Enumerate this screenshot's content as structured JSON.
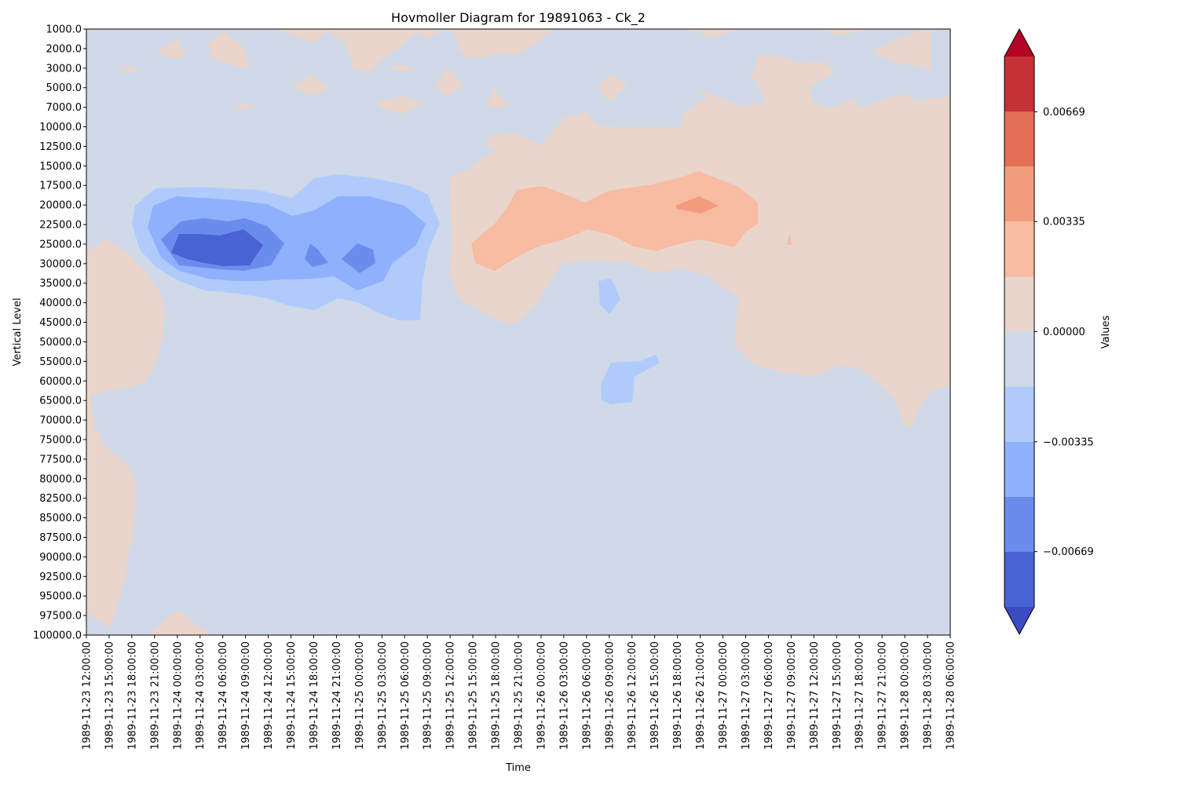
{
  "chart_data": {
    "type": "heatmap",
    "title": "Hovmoller Diagram for 19891063 - Ck_2",
    "xlabel": "Time",
    "ylabel": "Vertical Level",
    "colorbar_label": "Values",
    "colormap": "coolwarm",
    "grid": false,
    "y_inverted": true,
    "x_ticks": [
      "1989-11-23 12:00:00",
      "1989-11-23 15:00:00",
      "1989-11-23 18:00:00",
      "1989-11-23 21:00:00",
      "1989-11-24 00:00:00",
      "1989-11-24 03:00:00",
      "1989-11-24 06:00:00",
      "1989-11-24 09:00:00",
      "1989-11-24 12:00:00",
      "1989-11-24 15:00:00",
      "1989-11-24 18:00:00",
      "1989-11-24 21:00:00",
      "1989-11-25 00:00:00",
      "1989-11-25 03:00:00",
      "1989-11-25 06:00:00",
      "1989-11-25 09:00:00",
      "1989-11-25 12:00:00",
      "1989-11-25 15:00:00",
      "1989-11-25 18:00:00",
      "1989-11-25 21:00:00",
      "1989-11-26 00:00:00",
      "1989-11-26 03:00:00",
      "1989-11-26 06:00:00",
      "1989-11-26 09:00:00",
      "1989-11-26 12:00:00",
      "1989-11-26 15:00:00",
      "1989-11-26 18:00:00",
      "1989-11-26 21:00:00",
      "1989-11-27 00:00:00",
      "1989-11-27 03:00:00",
      "1989-11-27 06:00:00",
      "1989-11-27 09:00:00",
      "1989-11-27 12:00:00",
      "1989-11-27 15:00:00",
      "1989-11-27 18:00:00",
      "1989-11-27 21:00:00",
      "1989-11-28 00:00:00",
      "1989-11-28 03:00:00",
      "1989-11-28 06:00:00"
    ],
    "y_ticks": [
      "1000.0",
      "2000.0",
      "3000.0",
      "5000.0",
      "7000.0",
      "10000.0",
      "12500.0",
      "15000.0",
      "17500.0",
      "20000.0",
      "22500.0",
      "25000.0",
      "30000.0",
      "35000.0",
      "40000.0",
      "45000.0",
      "50000.0",
      "55000.0",
      "60000.0",
      "65000.0",
      "70000.0",
      "75000.0",
      "77500.0",
      "80000.0",
      "82500.0",
      "85000.0",
      "87500.0",
      "90000.0",
      "92500.0",
      "95000.0",
      "97500.0",
      "100000.0"
    ],
    "colorbar": {
      "ticks": [
        "0.00669",
        "0.00335",
        "0.00000",
        "−0.00335",
        "−0.00669"
      ],
      "tick_values": [
        0.00669,
        0.00335,
        0.0,
        -0.00335,
        -0.00669
      ],
      "range": [
        -0.00837,
        0.00837
      ],
      "extend": "both",
      "levels_top_to_bottom": [
        {
          "color": "#c43136",
          "range": [
            0.00669,
            0.00837
          ]
        },
        {
          "color": "#e26e56",
          "range": [
            0.00502,
            0.00669
          ]
        },
        {
          "color": "#f39c7d",
          "range": [
            0.00335,
            0.00502
          ]
        },
        {
          "color": "#f7bca1",
          "range": [
            0.00167,
            0.00335
          ]
        },
        {
          "color": "#e9d5cb",
          "range": [
            0.0,
            0.00167
          ]
        },
        {
          "color": "#cfd9e8",
          "range": [
            -0.00167,
            0.0
          ]
        },
        {
          "color": "#b0cbfb",
          "range": [
            -0.00335,
            -0.00167
          ]
        },
        {
          "color": "#8fb0fc",
          "range": [
            -0.00502,
            -0.00335
          ]
        },
        {
          "color": "#6a8ded",
          "range": [
            -0.00669,
            -0.00502
          ]
        },
        {
          "color": "#4a63d3",
          "range": [
            -0.00837,
            -0.00669
          ]
        }
      ],
      "over_color": "#b40426",
      "under_color": "#3b4cc0"
    },
    "features": [
      {
        "level": "negative",
        "value_range": [
          -0.00837,
          -0.00669
        ],
        "time_range": [
          "1989-11-24 00:00:00",
          "1989-11-24 12:00:00"
        ],
        "vertical_range": [
          "22500.0",
          "30000.0"
        ]
      },
      {
        "level": "negative",
        "value_range": [
          -0.00669,
          -0.00502
        ],
        "time_range": [
          "1989-11-24 18:00:00",
          "1989-11-25 03:00:00"
        ],
        "vertical_range": [
          "25000.0",
          "30000.0"
        ]
      },
      {
        "level": "negative",
        "value_range": [
          -0.00335,
          -0.00167
        ],
        "time_range": [
          "1989-11-23 21:00:00",
          "1989-11-25 12:00:00"
        ],
        "vertical_range": [
          "17500.0",
          "45000.0"
        ]
      },
      {
        "level": "positive",
        "value_range": [
          0.00167,
          0.00335
        ],
        "time_range": [
          "1989-11-25 15:00:00",
          "1989-11-27 03:00:00"
        ],
        "vertical_range": [
          "17500.0",
          "30000.0"
        ]
      },
      {
        "level": "positive",
        "value_range": [
          0.00335,
          0.00502
        ],
        "time_range": [
          "1989-11-26 18:00:00",
          "1989-11-26 21:00:00"
        ],
        "vertical_range": [
          "20000.0",
          "20000.0"
        ]
      },
      {
        "level": "positive",
        "value_range": [
          0.0,
          0.00167
        ],
        "time_range": [
          "1989-11-25 12:00:00",
          "1989-11-28 06:00:00"
        ],
        "vertical_range": [
          "1000.0",
          "70000.0"
        ]
      },
      {
        "level": "positive",
        "value_range": [
          0.0,
          0.00167
        ],
        "time_range": [
          "1989-11-23 12:00:00",
          "1989-11-23 21:00:00"
        ],
        "vertical_range": [
          "25000.0",
          "100000.0"
        ]
      },
      {
        "level": "negative",
        "value_range": [
          -0.00335,
          -0.00167
        ],
        "time_range": [
          "1989-11-26 09:00:00",
          "1989-11-26 15:00:00"
        ],
        "vertical_range": [
          "55000.0",
          "65000.0"
        ]
      }
    ]
  }
}
